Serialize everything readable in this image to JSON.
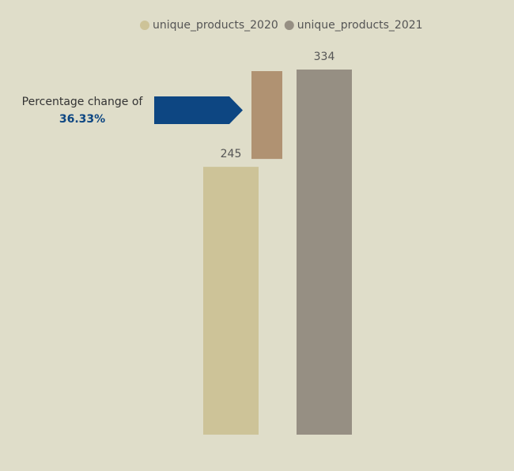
{
  "chart_data": {
    "type": "bar",
    "categories": [
      null
    ],
    "series": [
      {
        "name": "unique_products_2020",
        "color": "#cdc398",
        "values": [
          245
        ]
      },
      {
        "name": "unique_products_2021",
        "color": "#968f83",
        "values": [
          334
        ]
      }
    ],
    "change_color": "#b09272",
    "annotation": {
      "text": "Percentage change of",
      "label": "36.33%",
      "color": "#0d4682"
    }
  }
}
